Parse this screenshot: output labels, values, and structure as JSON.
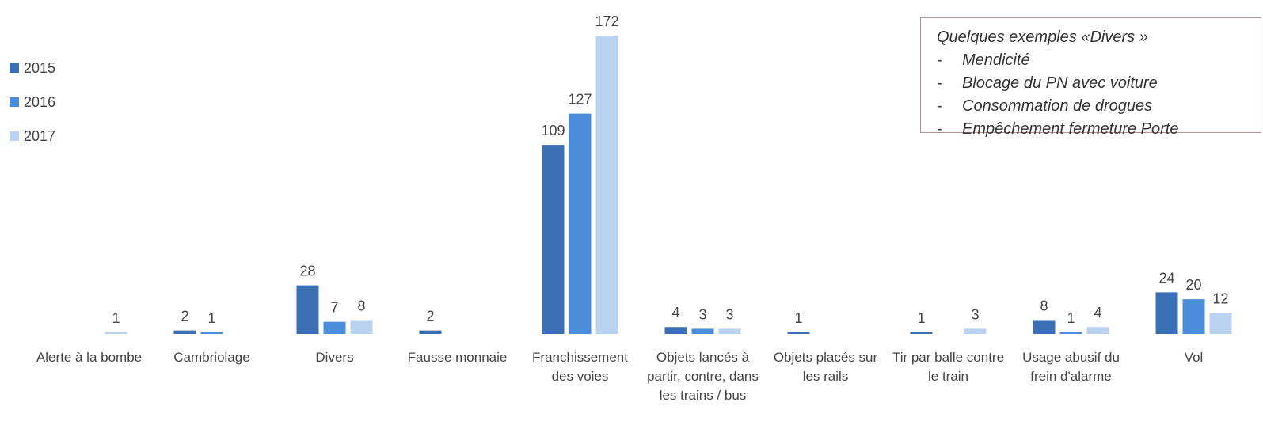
{
  "chart_data": {
    "type": "bar",
    "categories": [
      "Alerte à la bombe",
      "Cambriolage",
      "Divers",
      "Fausse monnaie",
      "Franchissement des voies",
      "Objets lancés à partir, contre, dans les trains / bus",
      "Objets placés sur les rails",
      "Tir par balle contre le train",
      "Usage abusif du frein d'alarme",
      "Vol"
    ],
    "series": [
      {
        "name": "2015",
        "color": "#3b6fb3",
        "values": [
          null,
          2,
          28,
          2,
          109,
          4,
          1,
          1,
          8,
          24
        ]
      },
      {
        "name": "2016",
        "color": "#4a8edb",
        "values": [
          null,
          1,
          7,
          null,
          127,
          3,
          null,
          null,
          1,
          20
        ]
      },
      {
        "name": "2017",
        "color": "#b8d2f0",
        "values": [
          1,
          null,
          8,
          null,
          172,
          3,
          null,
          3,
          4,
          12
        ]
      }
    ],
    "legend": "left",
    "annotation": {
      "title": "Quelques exemples «Divers »",
      "items": [
        "Mendicité",
        "Blocage du PN avec voiture",
        "Consommation de drogues",
        "Empêchement fermeture Porte"
      ]
    }
  }
}
